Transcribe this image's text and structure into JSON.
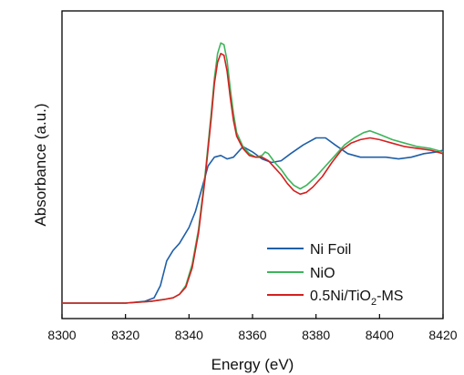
{
  "chart_data": {
    "type": "line",
    "xlabel": "Energy (eV)",
    "ylabel": "Absorbance (a.u.)",
    "xlim": [
      8300,
      8420
    ],
    "ylim": [
      0,
      1.6
    ],
    "x_ticks": [
      "8300",
      "8320",
      "8340",
      "8360",
      "8380",
      "8400",
      "8420"
    ],
    "y_ticks_shown": false,
    "grid": false,
    "legend_position": "bottom-right",
    "series": [
      {
        "name": "Ni Foil",
        "color": "#1f5fa8",
        "points": [
          [
            8300,
            0.0
          ],
          [
            8320,
            0.0
          ],
          [
            8326,
            0.01
          ],
          [
            8329,
            0.03
          ],
          [
            8331,
            0.1
          ],
          [
            8333,
            0.24
          ],
          [
            8335,
            0.3
          ],
          [
            8337,
            0.34
          ],
          [
            8340,
            0.43
          ],
          [
            8342,
            0.52
          ],
          [
            8344,
            0.65
          ],
          [
            8346,
            0.78
          ],
          [
            8348,
            0.83
          ],
          [
            8350,
            0.84
          ],
          [
            8352,
            0.82
          ],
          [
            8354,
            0.83
          ],
          [
            8357,
            0.89
          ],
          [
            8360,
            0.86
          ],
          [
            8363,
            0.82
          ],
          [
            8366,
            0.8
          ],
          [
            8369,
            0.81
          ],
          [
            8372,
            0.85
          ],
          [
            8376,
            0.9
          ],
          [
            8380,
            0.94
          ],
          [
            8383,
            0.94
          ],
          [
            8386,
            0.9
          ],
          [
            8390,
            0.85
          ],
          [
            8394,
            0.83
          ],
          [
            8398,
            0.83
          ],
          [
            8402,
            0.83
          ],
          [
            8406,
            0.82
          ],
          [
            8410,
            0.83
          ],
          [
            8414,
            0.85
          ],
          [
            8418,
            0.86
          ],
          [
            8420,
            0.87
          ]
        ]
      },
      {
        "name": "NiO",
        "color": "#3cb55a",
        "points": [
          [
            8300,
            0.0
          ],
          [
            8320,
            0.0
          ],
          [
            8328,
            0.01
          ],
          [
            8332,
            0.02
          ],
          [
            8335,
            0.03
          ],
          [
            8337,
            0.05
          ],
          [
            8339,
            0.1
          ],
          [
            8341,
            0.22
          ],
          [
            8343,
            0.42
          ],
          [
            8345,
            0.72
          ],
          [
            8347,
            1.08
          ],
          [
            8348,
            1.28
          ],
          [
            8349,
            1.42
          ],
          [
            8350,
            1.48
          ],
          [
            8351,
            1.47
          ],
          [
            8352,
            1.38
          ],
          [
            8353,
            1.22
          ],
          [
            8354,
            1.08
          ],
          [
            8355,
            0.97
          ],
          [
            8357,
            0.89
          ],
          [
            8359,
            0.85
          ],
          [
            8361,
            0.83
          ],
          [
            8363,
            0.84
          ],
          [
            8364,
            0.86
          ],
          [
            8365,
            0.85
          ],
          [
            8367,
            0.8
          ],
          [
            8369,
            0.76
          ],
          [
            8371,
            0.71
          ],
          [
            8373,
            0.67
          ],
          [
            8375,
            0.65
          ],
          [
            8377,
            0.67
          ],
          [
            8380,
            0.72
          ],
          [
            8383,
            0.78
          ],
          [
            8386,
            0.84
          ],
          [
            8389,
            0.9
          ],
          [
            8392,
            0.94
          ],
          [
            8395,
            0.97
          ],
          [
            8397,
            0.98
          ],
          [
            8400,
            0.96
          ],
          [
            8404,
            0.93
          ],
          [
            8408,
            0.91
          ],
          [
            8412,
            0.89
          ],
          [
            8416,
            0.88
          ],
          [
            8420,
            0.86
          ]
        ]
      },
      {
        "name": "0.5Ni/TiO2-MS",
        "color": "#d42020",
        "points": [
          [
            8300,
            0.0
          ],
          [
            8320,
            0.0
          ],
          [
            8328,
            0.01
          ],
          [
            8332,
            0.02
          ],
          [
            8335,
            0.03
          ],
          [
            8337,
            0.05
          ],
          [
            8339,
            0.09
          ],
          [
            8341,
            0.2
          ],
          [
            8343,
            0.4
          ],
          [
            8345,
            0.7
          ],
          [
            8347,
            1.05
          ],
          [
            8348,
            1.25
          ],
          [
            8349,
            1.37
          ],
          [
            8350,
            1.42
          ],
          [
            8351,
            1.41
          ],
          [
            8352,
            1.32
          ],
          [
            8353,
            1.17
          ],
          [
            8354,
            1.04
          ],
          [
            8355,
            0.95
          ],
          [
            8357,
            0.88
          ],
          [
            8359,
            0.84
          ],
          [
            8361,
            0.83
          ],
          [
            8363,
            0.83
          ],
          [
            8365,
            0.81
          ],
          [
            8367,
            0.77
          ],
          [
            8369,
            0.73
          ],
          [
            8371,
            0.68
          ],
          [
            8373,
            0.64
          ],
          [
            8375,
            0.62
          ],
          [
            8377,
            0.63
          ],
          [
            8379,
            0.66
          ],
          [
            8382,
            0.72
          ],
          [
            8385,
            0.8
          ],
          [
            8388,
            0.87
          ],
          [
            8391,
            0.91
          ],
          [
            8394,
            0.93
          ],
          [
            8397,
            0.94
          ],
          [
            8400,
            0.93
          ],
          [
            8404,
            0.91
          ],
          [
            8408,
            0.89
          ],
          [
            8412,
            0.88
          ],
          [
            8416,
            0.87
          ],
          [
            8420,
            0.85
          ]
        ]
      }
    ]
  },
  "legend": {
    "items": [
      {
        "label": "Ni Foil",
        "color": "#1f5fa8"
      },
      {
        "label": "NiO",
        "color": "#3cb55a"
      },
      {
        "label_main": "0.5Ni/TiO",
        "label_sub": "2",
        "label_tail": "-MS",
        "color": "#d42020"
      }
    ]
  }
}
